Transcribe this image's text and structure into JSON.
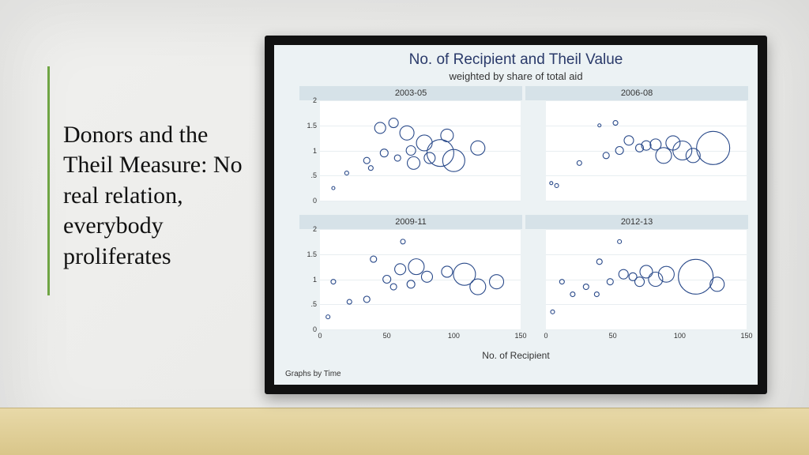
{
  "slide": {
    "side_title": "Donors and the Theil Measure: No real relation, everybody proliferates",
    "accent_color": "#6fa544",
    "background_gradient": [
      "#f0f0ee",
      "#e8e8e6"
    ],
    "floor_gradient": [
      "#e8d9a8",
      "#d9c68a"
    ]
  },
  "chart": {
    "title": "No. of Recipient and Theil Value",
    "subtitle": "weighted by share of total aid",
    "x_axis_title": "No. of Recipient",
    "footnote": "Graphs by Time",
    "canvas_bg": "#ecf2f4",
    "panel_header_bg": "#d6e2e8",
    "plot_bg": "#ffffff",
    "grid_color": "#e8eef1",
    "title_color": "#2a3a6a",
    "text_color": "#333333",
    "circle_stroke": "#2a4a8a",
    "xlim": [
      0,
      150
    ],
    "ylim": [
      0,
      2
    ],
    "xticks": [
      0,
      50,
      100,
      150
    ],
    "yticks": [
      0,
      0.5,
      1,
      1.5,
      2
    ],
    "ytick_labels": [
      "0",
      ".5",
      "1",
      "1.5",
      "2"
    ],
    "size_scale": 1.0,
    "panels": [
      {
        "label": "2003-05",
        "points": [
          {
            "x": 10,
            "y": 0.25,
            "r": 2
          },
          {
            "x": 20,
            "y": 0.55,
            "r": 2.5
          },
          {
            "x": 35,
            "y": 0.8,
            "r": 4
          },
          {
            "x": 38,
            "y": 0.65,
            "r": 3
          },
          {
            "x": 45,
            "y": 1.45,
            "r": 7
          },
          {
            "x": 48,
            "y": 0.95,
            "r": 5
          },
          {
            "x": 55,
            "y": 1.55,
            "r": 6
          },
          {
            "x": 58,
            "y": 0.85,
            "r": 4
          },
          {
            "x": 65,
            "y": 1.35,
            "r": 9
          },
          {
            "x": 68,
            "y": 1.0,
            "r": 6
          },
          {
            "x": 70,
            "y": 0.75,
            "r": 8
          },
          {
            "x": 78,
            "y": 1.15,
            "r": 10
          },
          {
            "x": 82,
            "y": 0.85,
            "r": 7
          },
          {
            "x": 90,
            "y": 0.95,
            "r": 17
          },
          {
            "x": 95,
            "y": 1.3,
            "r": 8
          },
          {
            "x": 100,
            "y": 0.8,
            "r": 14
          },
          {
            "x": 118,
            "y": 1.05,
            "r": 9
          }
        ]
      },
      {
        "label": "2006-08",
        "points": [
          {
            "x": 4,
            "y": 0.35,
            "r": 2
          },
          {
            "x": 8,
            "y": 0.3,
            "r": 2.5
          },
          {
            "x": 25,
            "y": 0.75,
            "r": 3
          },
          {
            "x": 40,
            "y": 1.5,
            "r": 2
          },
          {
            "x": 45,
            "y": 0.9,
            "r": 4
          },
          {
            "x": 52,
            "y": 1.55,
            "r": 3
          },
          {
            "x": 55,
            "y": 1.0,
            "r": 5
          },
          {
            "x": 62,
            "y": 1.2,
            "r": 6
          },
          {
            "x": 70,
            "y": 1.05,
            "r": 5
          },
          {
            "x": 75,
            "y": 1.1,
            "r": 6
          },
          {
            "x": 82,
            "y": 1.12,
            "r": 7
          },
          {
            "x": 88,
            "y": 0.9,
            "r": 10
          },
          {
            "x": 95,
            "y": 1.15,
            "r": 9
          },
          {
            "x": 102,
            "y": 1.0,
            "r": 12
          },
          {
            "x": 110,
            "y": 0.9,
            "r": 9
          },
          {
            "x": 125,
            "y": 1.05,
            "r": 21
          }
        ]
      },
      {
        "label": "2009-11",
        "points": [
          {
            "x": 6,
            "y": 0.25,
            "r": 2.5
          },
          {
            "x": 10,
            "y": 0.95,
            "r": 3
          },
          {
            "x": 22,
            "y": 0.55,
            "r": 3
          },
          {
            "x": 35,
            "y": 0.6,
            "r": 4
          },
          {
            "x": 40,
            "y": 1.4,
            "r": 4
          },
          {
            "x": 50,
            "y": 1.0,
            "r": 5
          },
          {
            "x": 55,
            "y": 0.85,
            "r": 4
          },
          {
            "x": 60,
            "y": 1.2,
            "r": 7
          },
          {
            "x": 62,
            "y": 1.75,
            "r": 3
          },
          {
            "x": 68,
            "y": 0.9,
            "r": 5
          },
          {
            "x": 72,
            "y": 1.25,
            "r": 10
          },
          {
            "x": 80,
            "y": 1.05,
            "r": 7
          },
          {
            "x": 95,
            "y": 1.15,
            "r": 7
          },
          {
            "x": 108,
            "y": 1.1,
            "r": 14
          },
          {
            "x": 118,
            "y": 0.85,
            "r": 10
          },
          {
            "x": 132,
            "y": 0.95,
            "r": 9
          }
        ]
      },
      {
        "label": "2012-13",
        "points": [
          {
            "x": 5,
            "y": 0.35,
            "r": 2.5
          },
          {
            "x": 12,
            "y": 0.95,
            "r": 3
          },
          {
            "x": 20,
            "y": 0.7,
            "r": 3
          },
          {
            "x": 30,
            "y": 0.85,
            "r": 3.5
          },
          {
            "x": 38,
            "y": 0.7,
            "r": 3
          },
          {
            "x": 40,
            "y": 1.35,
            "r": 3.5
          },
          {
            "x": 48,
            "y": 0.95,
            "r": 4
          },
          {
            "x": 55,
            "y": 1.75,
            "r": 2.5
          },
          {
            "x": 58,
            "y": 1.1,
            "r": 6
          },
          {
            "x": 65,
            "y": 1.05,
            "r": 5
          },
          {
            "x": 70,
            "y": 0.95,
            "r": 6
          },
          {
            "x": 75,
            "y": 1.15,
            "r": 8
          },
          {
            "x": 82,
            "y": 1.0,
            "r": 9
          },
          {
            "x": 90,
            "y": 1.1,
            "r": 10
          },
          {
            "x": 112,
            "y": 1.05,
            "r": 22
          },
          {
            "x": 128,
            "y": 0.9,
            "r": 9
          }
        ]
      }
    ]
  }
}
